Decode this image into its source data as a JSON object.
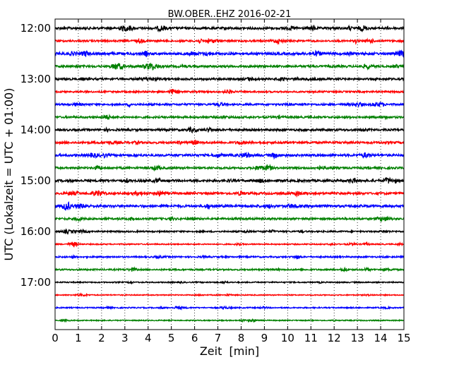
{
  "chart_data": {
    "type": "line",
    "title": "BW.OBER..EHZ 2016-02-21",
    "xlabel": "Zeit  [min]",
    "ylabel": "UTC (Lokalzeit = UTC + 01:00)",
    "xlim": [
      0,
      15
    ],
    "x_ticks": [
      0,
      1,
      2,
      3,
      4,
      5,
      6,
      7,
      8,
      9,
      10,
      11,
      12,
      13,
      14,
      15
    ],
    "y_ticks": [
      "12:00",
      "13:00",
      "14:00",
      "15:00",
      "16:00",
      "17:00"
    ],
    "grid": "vertical dotted lines at each minute",
    "color_cycle": [
      "#000000",
      "#ff0000",
      "#0000ff",
      "#008000"
    ],
    "series": [
      {
        "start": "12:00",
        "color": "#000000",
        "amplitude": 0.7
      },
      {
        "start": "12:15",
        "color": "#ff0000",
        "amplitude": 0.55
      },
      {
        "start": "12:30",
        "color": "#0000ff",
        "amplitude": 0.75
      },
      {
        "start": "12:45",
        "color": "#008000",
        "amplitude": 0.65
      },
      {
        "start": "13:00",
        "color": "#000000",
        "amplitude": 0.6
      },
      {
        "start": "13:15",
        "color": "#ff0000",
        "amplitude": 0.5
      },
      {
        "start": "13:30",
        "color": "#0000ff",
        "amplitude": 0.55
      },
      {
        "start": "13:45",
        "color": "#008000",
        "amplitude": 0.6
      },
      {
        "start": "14:00",
        "color": "#000000",
        "amplitude": 0.65
      },
      {
        "start": "14:15",
        "color": "#ff0000",
        "amplitude": 0.65
      },
      {
        "start": "14:30",
        "color": "#0000ff",
        "amplitude": 0.7
      },
      {
        "start": "14:45",
        "color": "#008000",
        "amplitude": 0.6
      },
      {
        "start": "15:00",
        "color": "#000000",
        "amplitude": 0.7
      },
      {
        "start": "15:15",
        "color": "#ff0000",
        "amplitude": 0.65
      },
      {
        "start": "15:30",
        "color": "#0000ff",
        "amplitude": 0.75
      },
      {
        "start": "15:45",
        "color": "#008000",
        "amplitude": 0.6
      },
      {
        "start": "16:00",
        "color": "#000000",
        "amplitude": 0.45
      },
      {
        "start": "16:15",
        "color": "#ff0000",
        "amplitude": 0.35
      },
      {
        "start": "16:30",
        "color": "#0000ff",
        "amplitude": 0.45
      },
      {
        "start": "16:45",
        "color": "#008000",
        "amplitude": 0.45
      },
      {
        "start": "17:00",
        "color": "#000000",
        "amplitude": 0.35
      },
      {
        "start": "17:15",
        "color": "#ff0000",
        "amplitude": 0.3
      },
      {
        "start": "17:30",
        "color": "#0000ff",
        "amplitude": 0.35
      },
      {
        "start": "17:45",
        "color": "#008000",
        "amplitude": 0.3
      }
    ]
  }
}
